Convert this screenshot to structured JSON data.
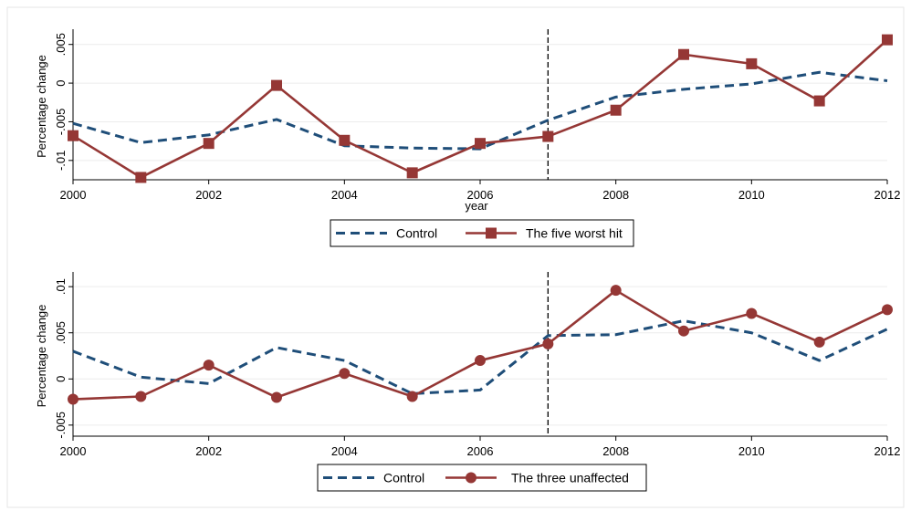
{
  "chart_data": [
    {
      "type": "line",
      "xlabel": "year",
      "ylabel": "Percentage change",
      "xlim": [
        2000,
        2012
      ],
      "ylim": [
        -0.0125,
        0.0065
      ],
      "x_ticks": [
        "2000",
        "2002",
        "2004",
        "2006",
        "2008",
        "2010",
        "2012"
      ],
      "y_ticks": [
        {
          "value": 0.005,
          "label": ".005"
        },
        {
          "value": 0,
          "label": "0"
        },
        {
          "value": -0.005,
          "label": "-.005"
        },
        {
          "value": -0.01,
          "label": "-.01"
        }
      ],
      "grid": true,
      "vline": 2007,
      "legend_position": "bottom",
      "x": [
        2000,
        2001,
        2002,
        2003,
        2004,
        2005,
        2006,
        2007,
        2008,
        2009,
        2010,
        2011,
        2012
      ],
      "series": [
        {
          "name": "Control",
          "style": "dashed",
          "color": "#1f4e79",
          "values": [
            -0.0052,
            -0.0077,
            -0.0067,
            -0.0047,
            -0.0081,
            -0.0084,
            -0.0085,
            -0.0048,
            -0.0018,
            -0.0008,
            -0.0001,
            0.0014,
            0.0003
          ]
        },
        {
          "name": "The five worst hit",
          "style": "solid-square",
          "color": "#953735",
          "values": [
            -0.0068,
            -0.0122,
            -0.0078,
            -0.0003,
            -0.0074,
            -0.0116,
            -0.0078,
            -0.0069,
            -0.0035,
            0.0037,
            0.0025,
            -0.0023,
            0.0056
          ]
        }
      ]
    },
    {
      "type": "line",
      "xlabel": "",
      "ylabel": "Percentage change",
      "xlim": [
        2000,
        2012
      ],
      "ylim": [
        -0.0062,
        0.0112
      ],
      "x_ticks": [
        "2000",
        "2002",
        "2004",
        "2006",
        "2008",
        "2010",
        "2012"
      ],
      "y_ticks": [
        {
          "value": 0.01,
          "label": ".01"
        },
        {
          "value": 0.005,
          "label": ".005"
        },
        {
          "value": 0,
          "label": "0"
        },
        {
          "value": -0.005,
          "label": "-.005"
        }
      ],
      "grid": true,
      "vline": 2007,
      "legend_position": "bottom",
      "x": [
        2000,
        2001,
        2002,
        2003,
        2004,
        2005,
        2006,
        2007,
        2008,
        2009,
        2010,
        2011,
        2012
      ],
      "series": [
        {
          "name": "Control",
          "style": "dashed",
          "color": "#1f4e79",
          "values": [
            0.003,
            0.0002,
            -0.0005,
            0.0034,
            0.002,
            -0.0016,
            -0.0012,
            0.0047,
            0.0048,
            0.0063,
            0.005,
            0.002,
            0.0054
          ]
        },
        {
          "name": "The three unaffected",
          "style": "solid-circle",
          "color": "#953735",
          "values": [
            -0.0022,
            -0.0019,
            0.0015,
            -0.002,
            0.0006,
            -0.0019,
            0.002,
            0.0038,
            0.0096,
            0.0052,
            0.0071,
            0.004,
            0.0075
          ]
        }
      ]
    }
  ]
}
